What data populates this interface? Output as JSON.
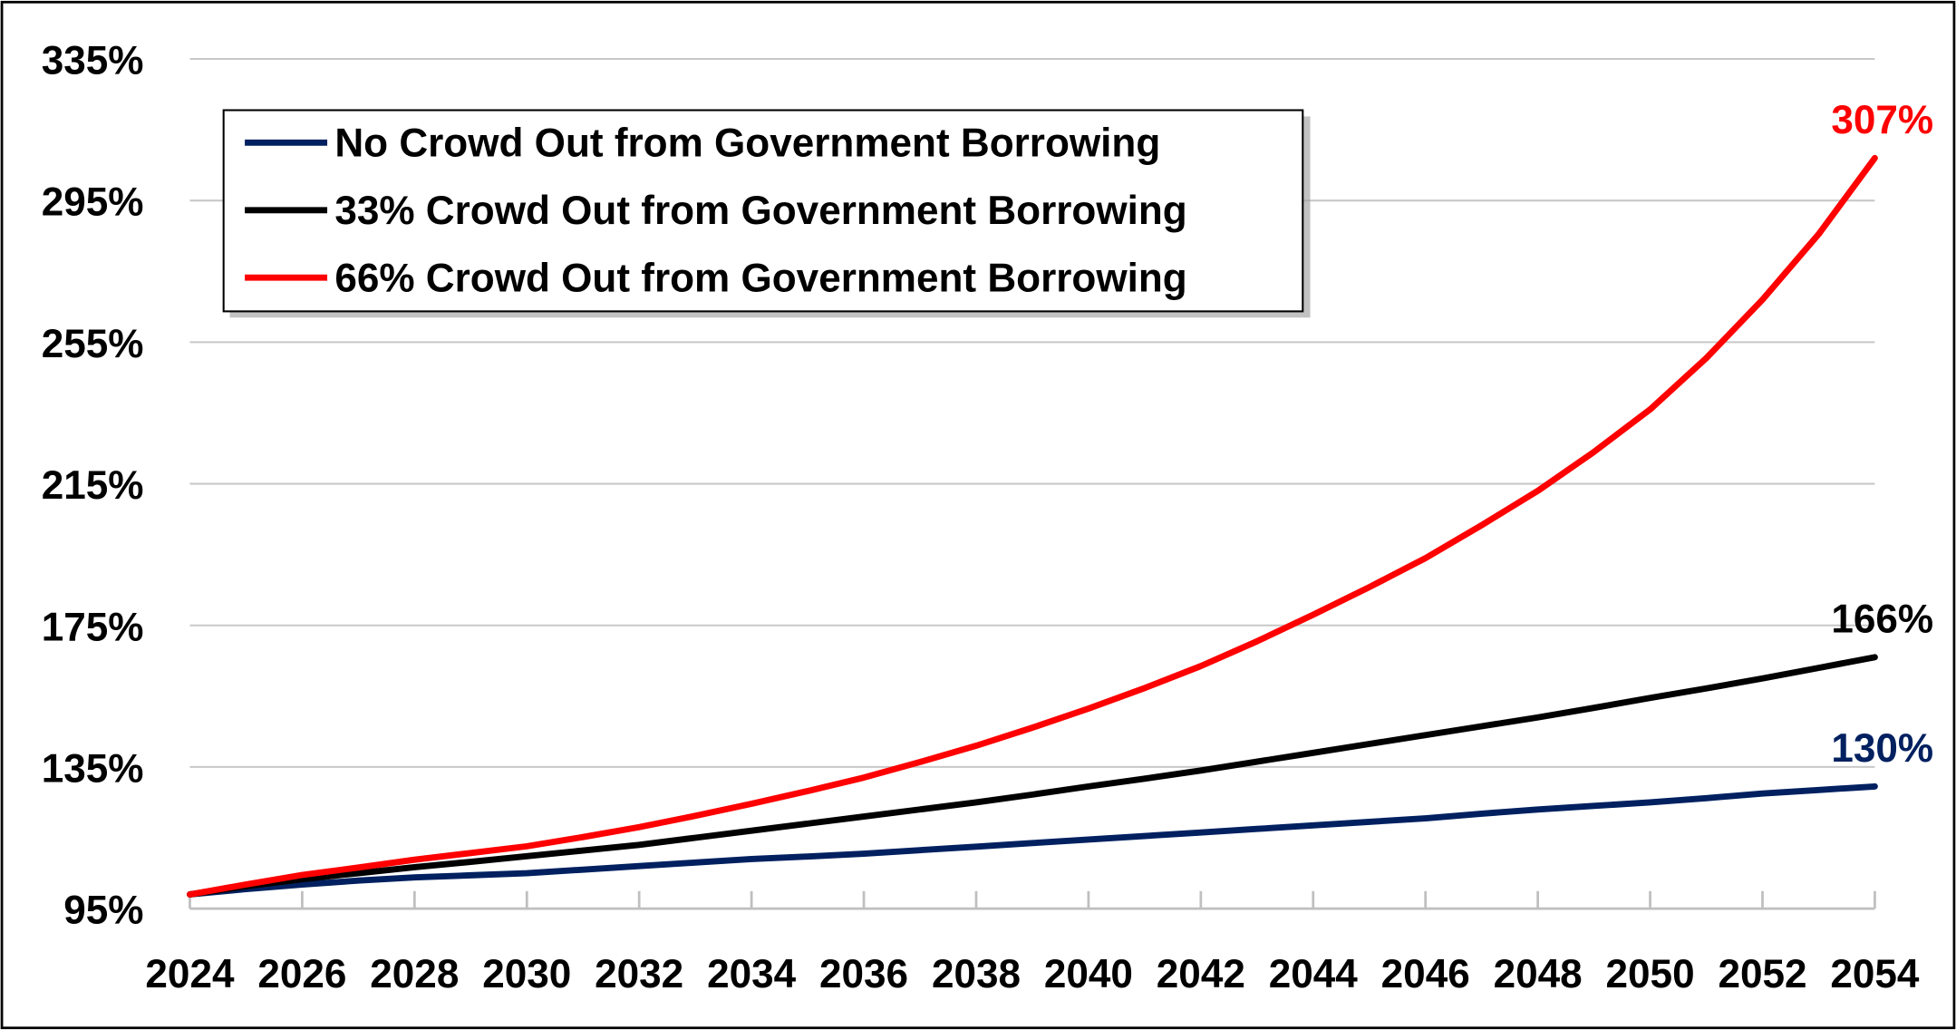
{
  "chart_data": {
    "type": "line",
    "title": "",
    "xlabel": "",
    "ylabel": "",
    "x": [
      2024,
      2025,
      2026,
      2027,
      2028,
      2029,
      2030,
      2031,
      2032,
      2033,
      2034,
      2035,
      2036,
      2037,
      2038,
      2039,
      2040,
      2041,
      2042,
      2043,
      2044,
      2045,
      2046,
      2047,
      2048,
      2049,
      2050,
      2051,
      2052,
      2053,
      2054
    ],
    "x_tick_labels": [
      "2024",
      "2026",
      "2028",
      "2030",
      "2032",
      "2034",
      "2036",
      "2038",
      "2040",
      "2042",
      "2044",
      "2046",
      "2048",
      "2050",
      "2052",
      "2054"
    ],
    "y_tick_values": [
      95,
      135,
      175,
      215,
      255,
      295,
      335
    ],
    "y_tick_labels": [
      "95%",
      "135%",
      "175%",
      "215%",
      "255%",
      "295%",
      "335%"
    ],
    "ylim": [
      95,
      335
    ],
    "xlim": [
      2024,
      2054
    ],
    "grid": true,
    "legend_position": "top-left",
    "series": [
      {
        "name": "No Crowd Out from Government Borrowing",
        "color": "#002060",
        "end_label": "130%",
        "values": [
          99,
          100.5,
          101.8,
          102.9,
          103.8,
          104.4,
          105,
          106,
          107,
          108,
          109,
          109.7,
          110.5,
          111.5,
          112.5,
          113.5,
          114.5,
          115.5,
          116.5,
          117.5,
          118.5,
          119.5,
          120.5,
          121.8,
          123,
          124,
          125,
          126.2,
          127.5,
          128.5,
          129.5
        ]
      },
      {
        "name": "33%  Crowd Out from Government Borrowing",
        "color": "#000000",
        "end_label": "166%",
        "values": [
          99,
          101.3,
          103.3,
          105,
          106.7,
          108.2,
          109.8,
          111.4,
          113,
          115,
          117,
          119,
          121,
          123,
          125,
          127.2,
          129.5,
          131.7,
          134,
          136.5,
          139,
          141.5,
          144,
          146.5,
          149,
          151.7,
          154.5,
          157.2,
          160,
          163,
          166
        ]
      },
      {
        "name": "66% Crowd Out from Government Borrowing",
        "color": "#FF0000",
        "end_label": "307%",
        "values": [
          99,
          101.8,
          104.5,
          106.6,
          108.8,
          110.7,
          112.6,
          115.2,
          118,
          121.2,
          124.6,
          128.2,
          132,
          136.4,
          141,
          146.1,
          151.5,
          157.3,
          163.5,
          170.5,
          178,
          185.8,
          194,
          203.3,
          213,
          224,
          236,
          250.5,
          267,
          285.5,
          307
        ]
      }
    ]
  }
}
